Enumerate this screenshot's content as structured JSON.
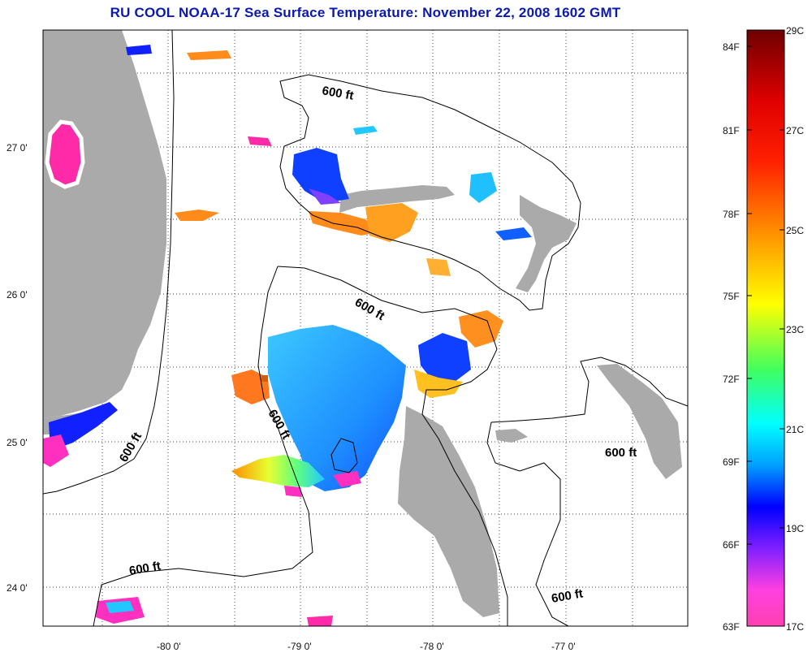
{
  "title": "RU COOL  NOAA-17  Sea Surface Temperature:  November 22, 2008 1602 GMT",
  "axes": {
    "lon_labels": [
      "-80 0'",
      "-79 0'",
      "-78 0'",
      "-77 0'"
    ],
    "lat_labels": [
      "27 0'",
      "26 0'",
      "25 0'",
      "24 0'"
    ]
  },
  "contours": [
    {
      "label": "600 ft"
    },
    {
      "label": "600 ft"
    },
    {
      "label": "600 ft"
    },
    {
      "label": "600 ft"
    },
    {
      "label": "600 ft"
    },
    {
      "label": "600 ft"
    }
  ],
  "colorbar": {
    "f_labels": [
      "84F",
      "81F",
      "78F",
      "75F",
      "72F",
      "69F",
      "66F",
      "63F"
    ],
    "c_labels": [
      "29C",
      "27C",
      "25C",
      "23C",
      "21C",
      "19C",
      "17C"
    ],
    "colors": [
      "#6e0000",
      "#ff0000",
      "#ff8000",
      "#ffff00",
      "#00ff80",
      "#00ffff",
      "#0040ff",
      "#8000ff",
      "#ff40c0"
    ]
  }
}
